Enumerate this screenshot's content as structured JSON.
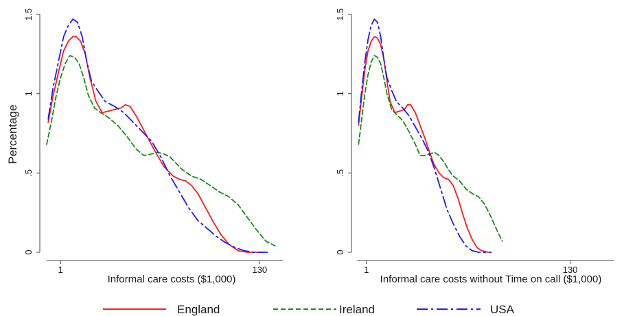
{
  "figure": {
    "ylabel": "Percentage",
    "legend_position": "bottom"
  },
  "legend": [
    {
      "name": "England",
      "color": "#ff1a1a",
      "dash": "solid"
    },
    {
      "name": "Ireland",
      "color": "#1a8a1a",
      "dash": "dashed"
    },
    {
      "name": "USA",
      "color": "#1a1aff",
      "dash": "dash-dot"
    }
  ],
  "chart_data": [
    {
      "type": "line",
      "xlabel": "Informal care costs ($1,000)",
      "ylabel": "Percentage",
      "xlim": [
        -8,
        145
      ],
      "ylim": [
        0,
        1.5
      ],
      "x_ticks": [
        1,
        130
      ],
      "y_ticks": [
        {
          "value": 0,
          "label": "0"
        },
        {
          "value": 0.5,
          "label": ".5"
        },
        {
          "value": 1,
          "label": "1"
        },
        {
          "value": 1.5,
          "label": "1.5"
        }
      ],
      "grid": false,
      "series": [
        {
          "name": "England",
          "color": "#ff1a1a",
          "dash": "solid",
          "x": [
            -7,
            -4,
            0,
            3,
            6,
            9,
            11,
            14,
            17,
            20,
            24,
            28,
            32,
            36,
            40,
            43,
            46,
            50,
            56,
            62,
            68,
            74,
            78,
            82,
            86,
            90,
            95,
            100,
            105,
            110,
            116,
            122,
            128,
            133
          ],
          "y": [
            0.82,
            0.98,
            1.15,
            1.27,
            1.33,
            1.36,
            1.36,
            1.33,
            1.25,
            1.1,
            0.95,
            0.88,
            0.89,
            0.9,
            0.91,
            0.93,
            0.92,
            0.86,
            0.75,
            0.64,
            0.54,
            0.48,
            0.46,
            0.45,
            0.42,
            0.37,
            0.28,
            0.19,
            0.11,
            0.05,
            0.01,
            0.0,
            0.0,
            0.0
          ]
        },
        {
          "name": "Ireland",
          "color": "#1a8a1a",
          "dash": "dashed",
          "x": [
            -8,
            -5,
            -2,
            1,
            4,
            7,
            10,
            13,
            16,
            19,
            23,
            27,
            32,
            38,
            44,
            50,
            55,
            60,
            64,
            68,
            72,
            76,
            80,
            86,
            92,
            98,
            104,
            110,
            116,
            122,
            128,
            134,
            140
          ],
          "y": [
            0.68,
            0.82,
            0.98,
            1.1,
            1.19,
            1.24,
            1.23,
            1.19,
            1.1,
            0.99,
            0.91,
            0.88,
            0.85,
            0.8,
            0.73,
            0.65,
            0.61,
            0.62,
            0.63,
            0.62,
            0.6,
            0.56,
            0.52,
            0.48,
            0.46,
            0.42,
            0.38,
            0.35,
            0.3,
            0.22,
            0.14,
            0.07,
            0.04
          ]
        },
        {
          "name": "USA",
          "color": "#1a1aff",
          "dash": "dash-dot",
          "x": [
            -7,
            -4,
            0,
            3,
            6,
            9,
            12,
            15,
            18,
            21,
            25,
            30,
            36,
            42,
            48,
            54,
            60,
            66,
            72,
            78,
            84,
            90,
            96,
            102,
            108,
            114,
            120,
            126,
            132,
            135
          ],
          "y": [
            0.84,
            1.03,
            1.22,
            1.36,
            1.43,
            1.47,
            1.45,
            1.36,
            1.2,
            1.08,
            1.02,
            0.95,
            0.92,
            0.88,
            0.82,
            0.76,
            0.7,
            0.6,
            0.48,
            0.38,
            0.28,
            0.2,
            0.15,
            0.1,
            0.06,
            0.03,
            0.01,
            0.0,
            0.0,
            0.0
          ]
        }
      ]
    },
    {
      "type": "line",
      "xlabel": "Informal care costs without Time on call ($1,000)",
      "ylabel": "",
      "xlim": [
        -5,
        158
      ],
      "ylim": [
        0,
        1.5
      ],
      "x_ticks": [
        1,
        130
      ],
      "y_ticks": [
        {
          "value": 0,
          "label": "0"
        },
        {
          "value": 0.5,
          "label": ".5"
        },
        {
          "value": 1,
          "label": "1"
        },
        {
          "value": 1.5,
          "label": "1.5"
        }
      ],
      "grid": false,
      "series": [
        {
          "name": "England",
          "color": "#ff1a1a",
          "dash": "solid",
          "x": [
            -4,
            -2,
            0,
            2,
            4,
            6,
            8,
            10,
            12,
            14,
            16,
            19,
            22,
            25,
            27,
            29,
            32,
            35,
            38,
            41,
            44,
            47,
            50,
            53,
            56,
            59,
            62,
            65,
            68,
            71,
            74,
            78
          ],
          "y": [
            0.8,
            0.98,
            1.15,
            1.27,
            1.33,
            1.36,
            1.35,
            1.31,
            1.22,
            1.08,
            0.95,
            0.88,
            0.89,
            0.9,
            0.93,
            0.93,
            0.88,
            0.8,
            0.72,
            0.63,
            0.55,
            0.5,
            0.47,
            0.46,
            0.42,
            0.34,
            0.24,
            0.15,
            0.08,
            0.03,
            0.01,
            0.0
          ]
        },
        {
          "name": "Ireland",
          "color": "#1a8a1a",
          "dash": "dashed",
          "x": [
            -4,
            -2,
            0,
            2,
            4,
            6,
            8,
            10,
            12,
            14,
            17,
            20,
            24,
            28,
            32,
            35,
            38,
            41,
            44,
            47,
            50,
            53,
            56,
            60,
            64,
            68,
            72,
            76,
            80,
            84,
            87
          ],
          "y": [
            0.68,
            0.84,
            1.0,
            1.12,
            1.2,
            1.24,
            1.23,
            1.19,
            1.1,
            1.0,
            0.9,
            0.87,
            0.83,
            0.76,
            0.68,
            0.61,
            0.61,
            0.62,
            0.63,
            0.61,
            0.57,
            0.52,
            0.48,
            0.45,
            0.4,
            0.37,
            0.35,
            0.3,
            0.22,
            0.13,
            0.07
          ]
        },
        {
          "name": "USA",
          "color": "#1a1aff",
          "dash": "dash-dot",
          "x": [
            -4,
            -2,
            0,
            2,
            4,
            6,
            8,
            10,
            12,
            14,
            17,
            20,
            24,
            28,
            32,
            36,
            40,
            44,
            48,
            52,
            56,
            60,
            64,
            68,
            72,
            76,
            80
          ],
          "y": [
            0.82,
            1.02,
            1.2,
            1.34,
            1.43,
            1.47,
            1.45,
            1.36,
            1.22,
            1.1,
            1.02,
            0.95,
            0.91,
            0.86,
            0.79,
            0.72,
            0.64,
            0.53,
            0.4,
            0.27,
            0.18,
            0.1,
            0.04,
            0.01,
            0.0,
            0.0,
            0.0
          ]
        }
      ]
    }
  ]
}
